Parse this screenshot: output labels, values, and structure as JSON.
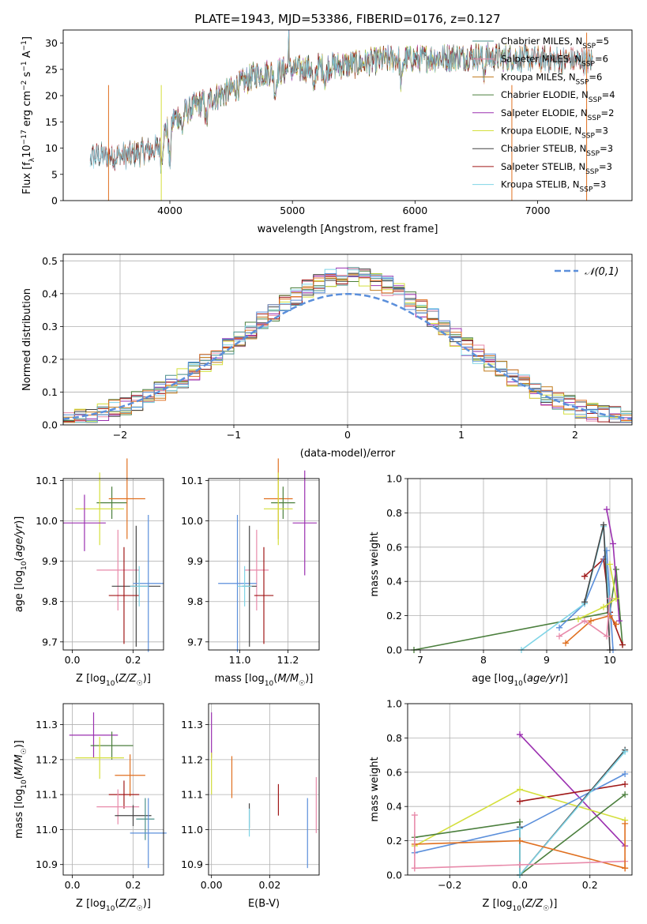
{
  "title": "PLATE=1943, MJD=53386, FIBERID=0176, z=0.127",
  "chart_data": [
    {
      "type": "line",
      "id": "spectrum",
      "xlabel": "wavelength [Angstrom, rest frame]",
      "ylabel": "Flux [f_λ10^-17 erg cm^-2 s^-1 A^-1]",
      "xlim": [
        3130,
        7770
      ],
      "ylim": [
        0,
        32.5
      ],
      "xticks": [
        4000,
        5000,
        6000,
        7000
      ],
      "yticks": [
        0,
        5,
        10,
        15,
        20,
        25,
        30
      ],
      "legend_position": "top-right",
      "series": [
        {
          "name": "Chabrier MILES, N_SSP=5",
          "color": "#4a8f8a",
          "start": 3350,
          "end": 7450
        },
        {
          "name": "Salpeter MILES, N_SSP=6",
          "color": "#e88aaa",
          "start": 3500,
          "end": 7450
        },
        {
          "name": "Kroupa MILES, N_SSP=6",
          "color": "#c07a1a",
          "start": 3500,
          "end": 7450
        },
        {
          "name": "Chabrier ELODIE, N_SSP=4",
          "color": "#4b7f3d",
          "start": 3900,
          "end": 6800
        },
        {
          "name": "Salpeter ELODIE, N_SSP=2",
          "color": "#9b30b0",
          "start": 3900,
          "end": 6800
        },
        {
          "name": "Kroupa ELODIE, N_SSP=3",
          "color": "#d4df3c",
          "start": 3900,
          "end": 6800
        },
        {
          "name": "Chabrier STELIB, N_SSP=3",
          "color": "#444444",
          "start": 3350,
          "end": 7450
        },
        {
          "name": "Salpeter STELIB, N_SSP=3",
          "color": "#a01818",
          "start": 3350,
          "end": 7450
        },
        {
          "name": "Kroupa STELIB, N_SSP=3",
          "color": "#7fd4e6",
          "start": 3350,
          "end": 7450
        }
      ],
      "continuum": [
        [
          3350,
          8.5
        ],
        [
          3650,
          8.5
        ],
        [
          3900,
          10
        ],
        [
          4000,
          15
        ],
        [
          4200,
          18
        ],
        [
          4500,
          21
        ],
        [
          4700,
          24
        ],
        [
          5000,
          25
        ],
        [
          5500,
          26
        ],
        [
          5800,
          27
        ],
        [
          6000,
          27
        ],
        [
          6500,
          27.5
        ],
        [
          7000,
          27
        ],
        [
          7450,
          26.5
        ]
      ],
      "absorption_features": [
        [
          3933,
          4
        ],
        [
          4000,
          8
        ],
        [
          4102,
          3
        ],
        [
          4300,
          4
        ],
        [
          4861,
          4
        ],
        [
          5175,
          5
        ],
        [
          5270,
          3
        ],
        [
          5890,
          5
        ],
        [
          6563,
          3
        ]
      ],
      "spikes": [
        [
          4970,
          32
        ]
      ],
      "drop_lines": [
        {
          "x": 3500,
          "color": "#e07020"
        },
        {
          "x": 3930,
          "color": "#d4df3c"
        },
        {
          "x": 6790,
          "color": "#e07020"
        },
        {
          "x": 7400,
          "color": "#e07020"
        }
      ]
    },
    {
      "type": "bar",
      "id": "residuals",
      "xlabel": "(data-model)/error",
      "ylabel": "Normed distribution",
      "xlim": [
        -2.5,
        2.5
      ],
      "ylim": [
        0,
        0.52
      ],
      "xticks": [
        -2,
        -1,
        0,
        1,
        2
      ],
      "yticks": [
        0.0,
        0.1,
        0.2,
        0.3,
        0.4,
        0.5
      ],
      "bin_width": 0.1,
      "legend": [
        {
          "label": "𝒩(0,1)",
          "style": "dashed",
          "color": "#5b8fdb"
        }
      ],
      "legend_position": "top-right",
      "histogram_colors": [
        "#4a8f8a",
        "#e88aaa",
        "#c07a1a",
        "#4b7f3d",
        "#9b30b0",
        "#d4df3c",
        "#444444",
        "#a01818",
        "#7fd4e6",
        "#e07020",
        "#5b8fdb"
      ]
    },
    {
      "type": "scatter",
      "id": "age-vs-Z",
      "xlabel": "Z [log10(Z/Z☉)]",
      "ylabel": "age [log10(age/yr)]",
      "xlim": [
        -0.03,
        0.3
      ],
      "ylim": [
        9.68,
        10.105
      ],
      "xticks": [
        0.0,
        0.2
      ],
      "yticks": [
        9.7,
        9.8,
        9.9,
        10.0,
        10.1
      ],
      "points": [
        {
          "x": 0.13,
          "y": 10.045,
          "xerr": 0.05,
          "yerr": 0.04,
          "color": "#4b7f3d"
        },
        {
          "x": 0.18,
          "y": 10.055,
          "xerr": 0.06,
          "yerr": 0.1,
          "color": "#e07020"
        },
        {
          "x": 0.09,
          "y": 10.03,
          "xerr": 0.08,
          "yerr": 0.09,
          "color": "#d4df3c"
        },
        {
          "x": 0.04,
          "y": 9.995,
          "xerr": 0.07,
          "yerr": 0.07,
          "color": "#9b30b0"
        },
        {
          "x": 0.15,
          "y": 9.878,
          "xerr": 0.07,
          "yerr": 0.1,
          "color": "#e88aaa"
        },
        {
          "x": 0.21,
          "y": 9.838,
          "xerr": 0.08,
          "yerr": 0.15,
          "color": "#444444"
        },
        {
          "x": 0.25,
          "y": 9.845,
          "xerr": 0.05,
          "yerr": 0.17,
          "color": "#5b8fdb"
        },
        {
          "x": 0.17,
          "y": 9.815,
          "xerr": 0.05,
          "yerr": 0.12,
          "color": "#a01818"
        },
        {
          "x": 0.22,
          "y": 9.838,
          "xerr": 0.03,
          "yerr": 0.05,
          "color": "#7fd4e6"
        }
      ]
    },
    {
      "type": "scatter",
      "id": "age-vs-mass",
      "xlabel": "mass [log10(M/M☉)]",
      "ylabel": "",
      "xlim": [
        10.87,
        11.33
      ],
      "ylim": [
        9.68,
        10.105
      ],
      "xticks": [
        11.0,
        11.2
      ],
      "yticks": [
        9.7,
        9.8,
        9.9,
        10.0,
        10.1
      ],
      "points": [
        {
          "x": 11.16,
          "y": 10.055,
          "xerr": 0.06,
          "yerr": 0.1,
          "color": "#e07020"
        },
        {
          "x": 11.18,
          "y": 10.045,
          "xerr": 0.05,
          "yerr": 0.04,
          "color": "#4b7f3d"
        },
        {
          "x": 11.16,
          "y": 10.03,
          "xerr": 0.06,
          "yerr": 0.09,
          "color": "#d4df3c"
        },
        {
          "x": 11.27,
          "y": 9.995,
          "xerr": 0.05,
          "yerr": 0.13,
          "color": "#9b30b0"
        },
        {
          "x": 11.07,
          "y": 9.878,
          "xerr": 0.05,
          "yerr": 0.1,
          "color": "#e88aaa"
        },
        {
          "x": 10.99,
          "y": 9.845,
          "xerr": 0.08,
          "yerr": 0.17,
          "color": "#5b8fdb"
        },
        {
          "x": 11.04,
          "y": 9.838,
          "xerr": 0.03,
          "yerr": 0.15,
          "color": "#444444"
        },
        {
          "x": 11.1,
          "y": 9.815,
          "xerr": 0.04,
          "yerr": 0.12,
          "color": "#a01818"
        },
        {
          "x": 11.02,
          "y": 9.838,
          "xerr": 0.03,
          "yerr": 0.05,
          "color": "#7fd4e6"
        }
      ]
    },
    {
      "type": "line",
      "id": "weight-vs-age",
      "xlabel": "age [log10(age/yr)]",
      "ylabel": "mass weight",
      "xlim": [
        6.8,
        10.35
      ],
      "ylim": [
        0,
        1.0
      ],
      "xticks": [
        7,
        8,
        9,
        10
      ],
      "yticks": [
        0.0,
        0.2,
        0.4,
        0.6,
        0.8,
        1.0
      ],
      "series": [
        {
          "color": "#4b7f3d",
          "points": [
            [
              6.9,
              0.0
            ],
            [
              10.0,
              0.22
            ],
            [
              10.1,
              0.47
            ],
            [
              10.2,
              0.03
            ]
          ]
        },
        {
          "color": "#a01818",
          "points": [
            [
              9.6,
              0.43
            ],
            [
              9.9,
              0.53
            ],
            [
              10.0,
              0.22
            ],
            [
              10.2,
              0.03
            ]
          ]
        },
        {
          "color": "#9b30b0",
          "points": [
            [
              9.95,
              0.82
            ],
            [
              10.05,
              0.62
            ],
            [
              10.15,
              0.17
            ]
          ]
        },
        {
          "color": "#5b8fdb",
          "points": [
            [
              9.2,
              0.13
            ],
            [
              9.6,
              0.27
            ],
            [
              9.95,
              0.58
            ],
            [
              10.05,
              0.0
            ]
          ]
        },
        {
          "color": "#7fd4e6",
          "points": [
            [
              8.6,
              0.0
            ],
            [
              9.6,
              0.27
            ],
            [
              9.9,
              0.72
            ],
            [
              10.0,
              0.2
            ]
          ]
        },
        {
          "color": "#444444",
          "points": [
            [
              9.6,
              0.28
            ],
            [
              9.9,
              0.73
            ],
            [
              10.0,
              0.0
            ]
          ]
        },
        {
          "color": "#e07020",
          "points": [
            [
              9.3,
              0.04
            ],
            [
              9.7,
              0.17
            ],
            [
              10.0,
              0.2
            ],
            [
              10.1,
              0.15
            ]
          ]
        },
        {
          "color": "#e88aaa",
          "points": [
            [
              9.2,
              0.08
            ],
            [
              9.6,
              0.17
            ],
            [
              9.95,
              0.08
            ],
            [
              10.0,
              0.3
            ]
          ]
        },
        {
          "color": "#d4df3c",
          "points": [
            [
              9.5,
              0.18
            ],
            [
              9.9,
              0.25
            ],
            [
              10.1,
              0.3
            ],
            [
              10.0,
              0.5
            ]
          ]
        }
      ]
    },
    {
      "type": "scatter",
      "id": "mass-vs-Z",
      "xlabel": "Z [log10(Z/Z☉)]",
      "ylabel": "mass [log10(M/M☉)]",
      "xlim": [
        -0.03,
        0.3
      ],
      "ylim": [
        10.87,
        11.36
      ],
      "xticks": [
        0.0,
        0.2
      ],
      "yticks": [
        10.9,
        11.0,
        11.1,
        11.2,
        11.3
      ],
      "points": [
        {
          "x": 0.07,
          "y": 11.27,
          "xerr": 0.08,
          "yerr": 0.065,
          "color": "#9b30b0"
        },
        {
          "x": 0.13,
          "y": 11.24,
          "xerr": 0.07,
          "yerr": 0.04,
          "color": "#4b7f3d"
        },
        {
          "x": 0.09,
          "y": 11.205,
          "xerr": 0.08,
          "yerr": 0.06,
          "color": "#d4df3c"
        },
        {
          "x": 0.19,
          "y": 11.155,
          "xerr": 0.05,
          "yerr": 0.06,
          "color": "#e07020"
        },
        {
          "x": 0.17,
          "y": 11.1,
          "xerr": 0.05,
          "yerr": 0.04,
          "color": "#a01818"
        },
        {
          "x": 0.15,
          "y": 11.065,
          "xerr": 0.07,
          "yerr": 0.05,
          "color": "#e88aaa"
        },
        {
          "x": 0.2,
          "y": 11.04,
          "xerr": 0.06,
          "yerr": 0.03,
          "color": "#444444"
        },
        {
          "x": 0.24,
          "y": 11.03,
          "xerr": 0.03,
          "yerr": 0.06,
          "color": "#4a8f8a"
        },
        {
          "x": 0.25,
          "y": 10.99,
          "xerr": 0.06,
          "yerr": 0.1,
          "color": "#5b8fdb"
        }
      ]
    },
    {
      "type": "scatter",
      "id": "mass-vs-ebv",
      "xlabel": "E(B-V)",
      "ylabel": "",
      "xlim": [
        -0.001,
        0.037
      ],
      "ylim": [
        10.87,
        11.36
      ],
      "xticks": [
        0.0,
        0.02
      ],
      "yticks": [
        10.9,
        11.0,
        11.1,
        11.2,
        11.3
      ],
      "points": [
        {
          "x": 0.0,
          "y": 11.27,
          "xerr": 0,
          "yerr": 0.065,
          "color": "#9b30b0"
        },
        {
          "x": 0.0,
          "y": 11.16,
          "xerr": 0,
          "yerr": 0.06,
          "color": "#d4df3c"
        },
        {
          "x": 0.007,
          "y": 11.15,
          "xerr": 0,
          "yerr": 0.06,
          "color": "#e07020"
        },
        {
          "x": 0.013,
          "y": 11.04,
          "xerr": 0,
          "yerr": 0.035,
          "color": "#444444"
        },
        {
          "x": 0.013,
          "y": 11.02,
          "xerr": 0,
          "yerr": 0.04,
          "color": "#7fd4e6"
        },
        {
          "x": 0.023,
          "y": 11.085,
          "xerr": 0,
          "yerr": 0.045,
          "color": "#a01818"
        },
        {
          "x": 0.033,
          "y": 10.99,
          "xerr": 0,
          "yerr": 0.1,
          "color": "#5b8fdb"
        },
        {
          "x": 0.036,
          "y": 11.07,
          "xerr": 0,
          "yerr": 0.08,
          "color": "#e88aaa"
        }
      ]
    },
    {
      "type": "line",
      "id": "weight-vs-Z",
      "xlabel": "Z [log10(Z/Z☉)]",
      "ylabel": "mass weight",
      "xlim": [
        -0.32,
        0.32
      ],
      "ylim": [
        0,
        1.0
      ],
      "xticks": [
        -0.2,
        0.0,
        0.2
      ],
      "yticks": [
        0.0,
        0.2,
        0.4,
        0.6,
        0.8,
        1.0
      ],
      "series": [
        {
          "color": "#9b30b0",
          "points": [
            [
              0.0,
              0.82
            ],
            [
              0.3,
              0.17
            ]
          ]
        },
        {
          "color": "#a01818",
          "points": [
            [
              0.0,
              0.43
            ],
            [
              0.3,
              0.53
            ]
          ]
        },
        {
          "color": "#d4df3c",
          "points": [
            [
              -0.3,
              0.17
            ],
            [
              0.0,
              0.5
            ],
            [
              0.3,
              0.32
            ]
          ]
        },
        {
          "color": "#4b7f3d",
          "points": [
            [
              -0.3,
              0.22
            ],
            [
              0.0,
              0.31
            ],
            [
              0.0,
              0.0
            ],
            [
              0.3,
              0.47
            ]
          ]
        },
        {
          "color": "#5b8fdb",
          "points": [
            [
              -0.3,
              0.13
            ],
            [
              0.0,
              0.27
            ],
            [
              0.3,
              0.59
            ]
          ]
        },
        {
          "color": "#444444",
          "points": [
            [
              0.0,
              0.28
            ],
            [
              0.0,
              0.0
            ],
            [
              0.3,
              0.73
            ]
          ]
        },
        {
          "color": "#7fd4e6",
          "points": [
            [
              0.0,
              0.27
            ],
            [
              0.0,
              0.0
            ],
            [
              0.3,
              0.72
            ]
          ]
        },
        {
          "color": "#e07020",
          "points": [
            [
              -0.3,
              0.18
            ],
            [
              0.0,
              0.2
            ],
            [
              0.3,
              0.04
            ]
          ]
        },
        {
          "color": "#e88aaa",
          "points": [
            [
              -0.3,
              0.04
            ],
            [
              0.0,
              0.06
            ],
            [
              0.3,
              0.08
            ]
          ]
        },
        {
          "color": "#e88aaa",
          "points": [
            [
              -0.3,
              0.35
            ],
            [
              -0.3,
              0.04
            ]
          ]
        },
        {
          "color": "#e07020",
          "points": [
            [
              0.3,
              0.3
            ],
            [
              0.3,
              0.04
            ]
          ]
        }
      ]
    }
  ]
}
